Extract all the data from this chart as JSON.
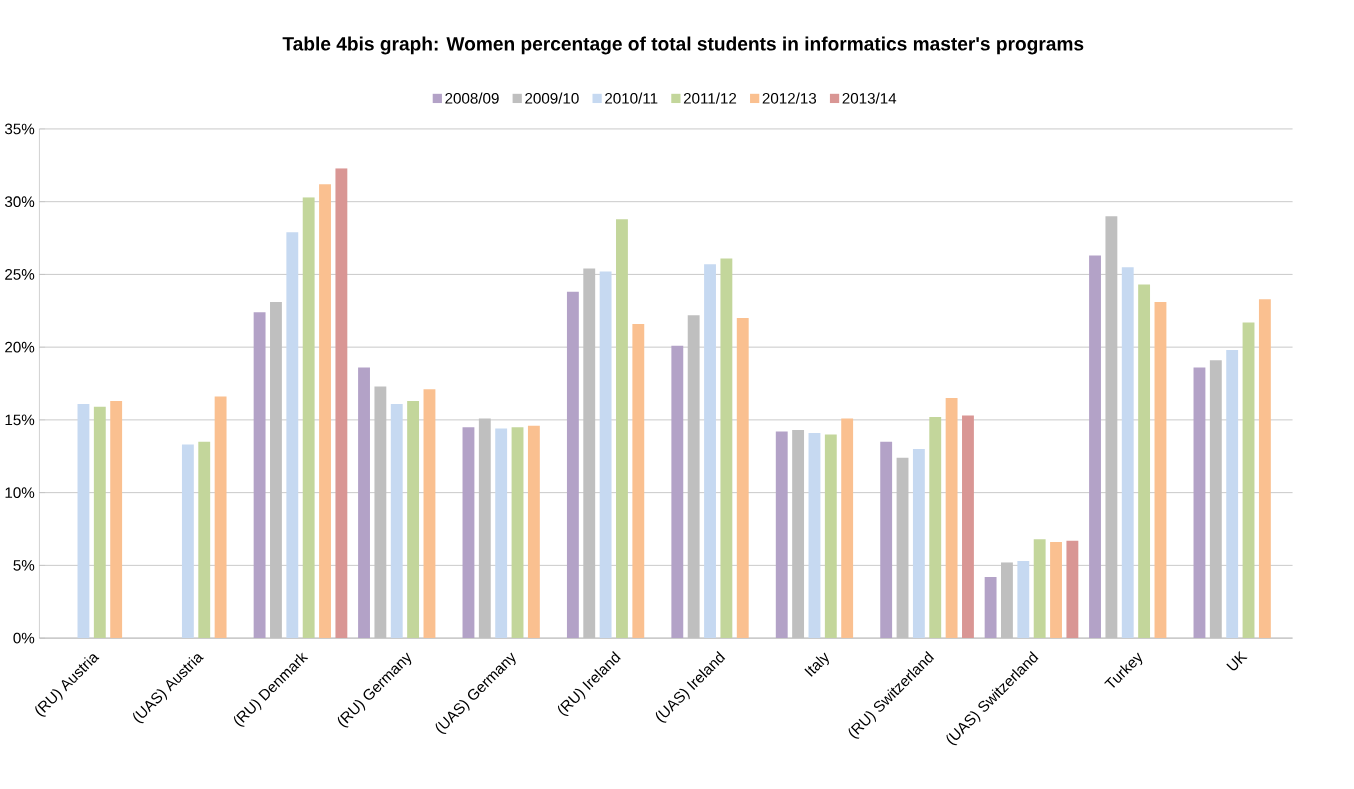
{
  "chart_data": {
    "type": "bar",
    "title": "Table 4bis graph: Women percentage of total students in informatics master's programs",
    "categories": [
      "(RU) Austria",
      "(UAS) Austria",
      "(RU) Denmark",
      "(RU) Germany",
      "(UAS) Germany",
      "(RU) Ireland",
      "(UAS) Ireland",
      "Italy",
      "(RU) Switzerland",
      "(UAS) Switzerland",
      "Turkey",
      "UK"
    ],
    "series": [
      {
        "name": "2008/09",
        "color": "#b3a2c7",
        "values": [
          null,
          null,
          22.4,
          18.6,
          14.5,
          23.8,
          20.1,
          14.2,
          13.5,
          4.2,
          26.3,
          18.6
        ]
      },
      {
        "name": "2009/10",
        "color": "#bfbfbf",
        "values": [
          null,
          null,
          23.1,
          17.3,
          15.1,
          25.4,
          22.2,
          14.3,
          12.4,
          5.2,
          29.0,
          19.1
        ]
      },
      {
        "name": "2010/11",
        "color": "#c6d9f1",
        "values": [
          16.1,
          13.3,
          27.9,
          16.1,
          14.4,
          25.2,
          25.7,
          14.1,
          13.0,
          5.3,
          25.5,
          19.8
        ]
      },
      {
        "name": "2011/12",
        "color": "#c3d69b",
        "values": [
          15.9,
          13.5,
          30.3,
          16.3,
          14.5,
          28.8,
          26.1,
          14.0,
          15.2,
          6.8,
          24.3,
          21.7
        ]
      },
      {
        "name": "2012/13",
        "color": "#fac090",
        "values": [
          16.3,
          16.6,
          31.2,
          17.1,
          14.6,
          21.6,
          22.0,
          15.1,
          16.5,
          6.6,
          23.1,
          23.3
        ]
      },
      {
        "name": "2013/14",
        "color": "#d99694",
        "values": [
          null,
          null,
          32.3,
          null,
          null,
          null,
          null,
          null,
          15.3,
          6.7,
          null,
          null
        ]
      }
    ],
    "ylim": [
      0,
      35
    ],
    "yticks": [
      {
        "value": 0,
        "label": "0%"
      },
      {
        "value": 5,
        "label": "5%"
      },
      {
        "value": 10,
        "label": "10%"
      },
      {
        "value": 15,
        "label": "15%"
      },
      {
        "value": 20,
        "label": "20%"
      },
      {
        "value": 25,
        "label": "25%"
      },
      {
        "value": 30,
        "label": "30%"
      },
      {
        "value": 35,
        "label": "35%"
      }
    ],
    "grid": "y",
    "legend": "top"
  }
}
